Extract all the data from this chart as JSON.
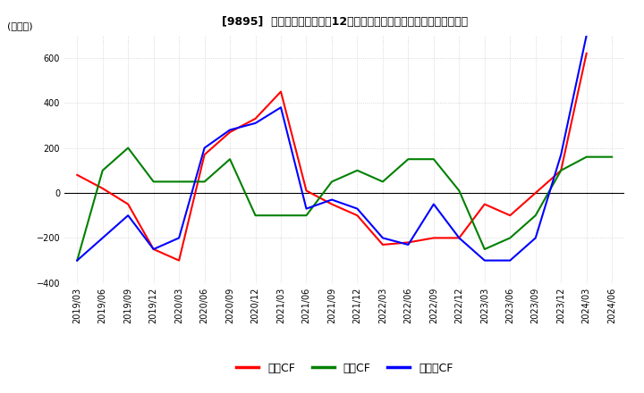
{
  "title": "[9895]  キャッシュフローの12か月移動合計の対前年同期増減額の推移",
  "ylabel": "(百万円)",
  "ylim": [
    -400,
    700
  ],
  "yticks": [
    -400,
    -200,
    0,
    200,
    400,
    600
  ],
  "legend_labels": [
    "営業CF",
    "投資CF",
    "フリーCF"
  ],
  "legend_colors": [
    "#ff0000",
    "#008000",
    "#0000ff"
  ],
  "dates": [
    "2019/03",
    "2019/06",
    "2019/09",
    "2019/12",
    "2020/03",
    "2020/06",
    "2020/09",
    "2020/12",
    "2021/03",
    "2021/06",
    "2021/09",
    "2021/12",
    "2022/03",
    "2022/06",
    "2022/09",
    "2022/12",
    "2023/03",
    "2023/06",
    "2023/09",
    "2023/12",
    "2024/03",
    "2024/06"
  ],
  "eigyo_cf": [
    80,
    20,
    -50,
    -250,
    -300,
    170,
    270,
    330,
    450,
    10,
    -50,
    -100,
    -230,
    -220,
    -200,
    -200,
    -50,
    -100,
    0,
    100,
    620,
    null
  ],
  "toshi_cf": [
    -300,
    100,
    200,
    50,
    50,
    50,
    150,
    -100,
    -100,
    -100,
    50,
    100,
    50,
    150,
    150,
    10,
    -250,
    -200,
    -100,
    100,
    160,
    160
  ],
  "free_cf": [
    -300,
    -200,
    -100,
    -250,
    -200,
    200,
    280,
    310,
    380,
    -70,
    -30,
    -70,
    -200,
    -230,
    -50,
    -200,
    -300,
    -300,
    -200,
    170,
    700,
    null
  ],
  "bg_color": "#ffffff",
  "grid_color": "#cccccc",
  "title_fontsize": 9,
  "tick_fontsize": 7,
  "ylabel_fontsize": 8,
  "legend_fontsize": 9,
  "linewidth": 1.5
}
